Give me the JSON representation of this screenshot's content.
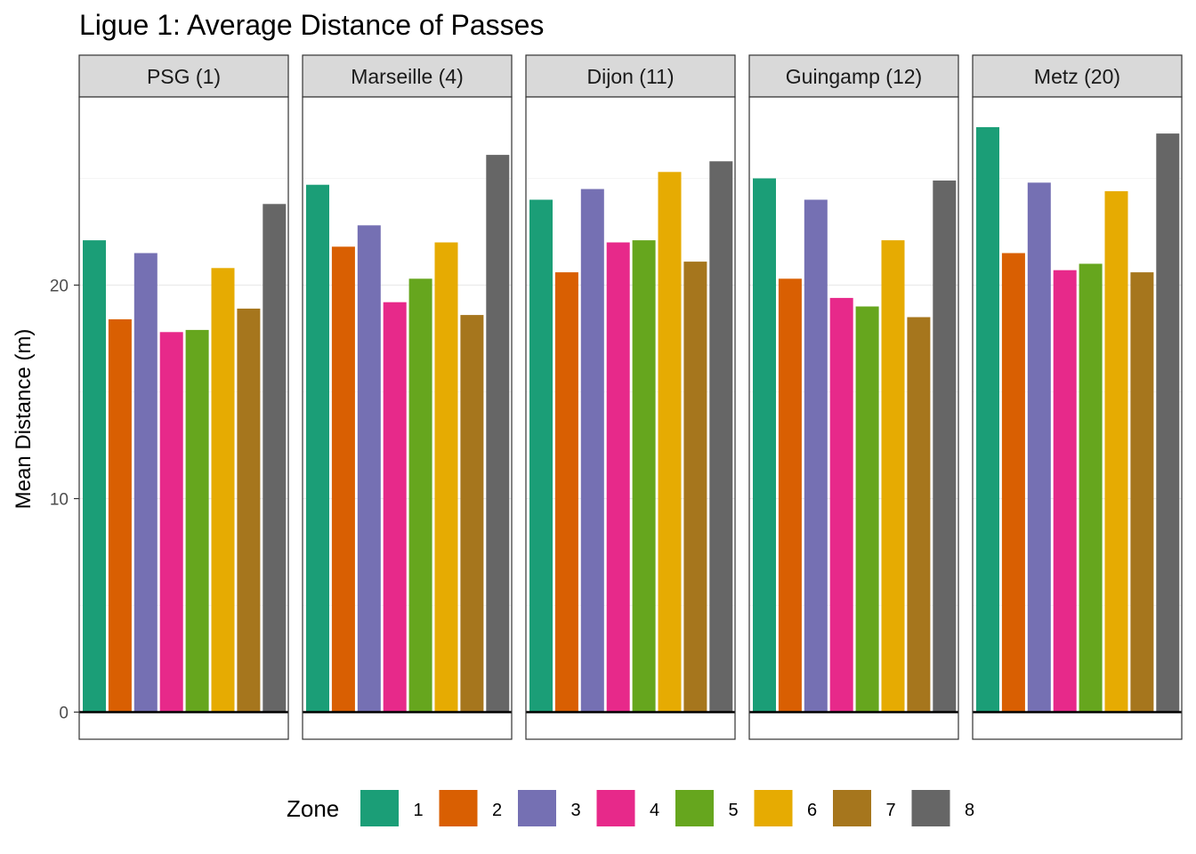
{
  "chart_data": {
    "type": "bar",
    "title": "Ligue 1: Average Distance of Passes",
    "xlabel": "",
    "ylabel": "Mean Distance (m)",
    "ylim": [
      -1.3,
      28.8
    ],
    "yticks": [
      0,
      10,
      20
    ],
    "grid": true,
    "legend": {
      "title": "Zone",
      "position": "bottom",
      "entries": [
        "1",
        "2",
        "3",
        "4",
        "5",
        "6",
        "7",
        "8"
      ]
    },
    "colors": [
      "#1b9e77",
      "#d95f02",
      "#7570b3",
      "#e7298a",
      "#66a61e",
      "#e6ab02",
      "#a6761d",
      "#666666"
    ],
    "zones": [
      "1",
      "2",
      "3",
      "4",
      "5",
      "6",
      "7",
      "8"
    ],
    "panels": [
      {
        "name": "PSG (1)",
        "values": [
          22.1,
          18.4,
          21.5,
          17.8,
          17.9,
          20.8,
          18.9,
          23.8
        ]
      },
      {
        "name": "Marseille (4)",
        "values": [
          24.7,
          21.8,
          22.8,
          19.2,
          20.3,
          22.0,
          18.6,
          26.1
        ]
      },
      {
        "name": "Dijon (11)",
        "values": [
          24.0,
          20.6,
          24.5,
          22.0,
          22.1,
          25.3,
          21.1,
          25.8
        ]
      },
      {
        "name": "Guingamp (12)",
        "values": [
          25.0,
          20.3,
          24.0,
          19.4,
          19.0,
          22.1,
          18.5,
          24.9
        ]
      },
      {
        "name": "Metz (20)",
        "values": [
          27.4,
          21.5,
          24.8,
          20.7,
          21.0,
          24.4,
          20.6,
          27.1
        ]
      }
    ]
  }
}
